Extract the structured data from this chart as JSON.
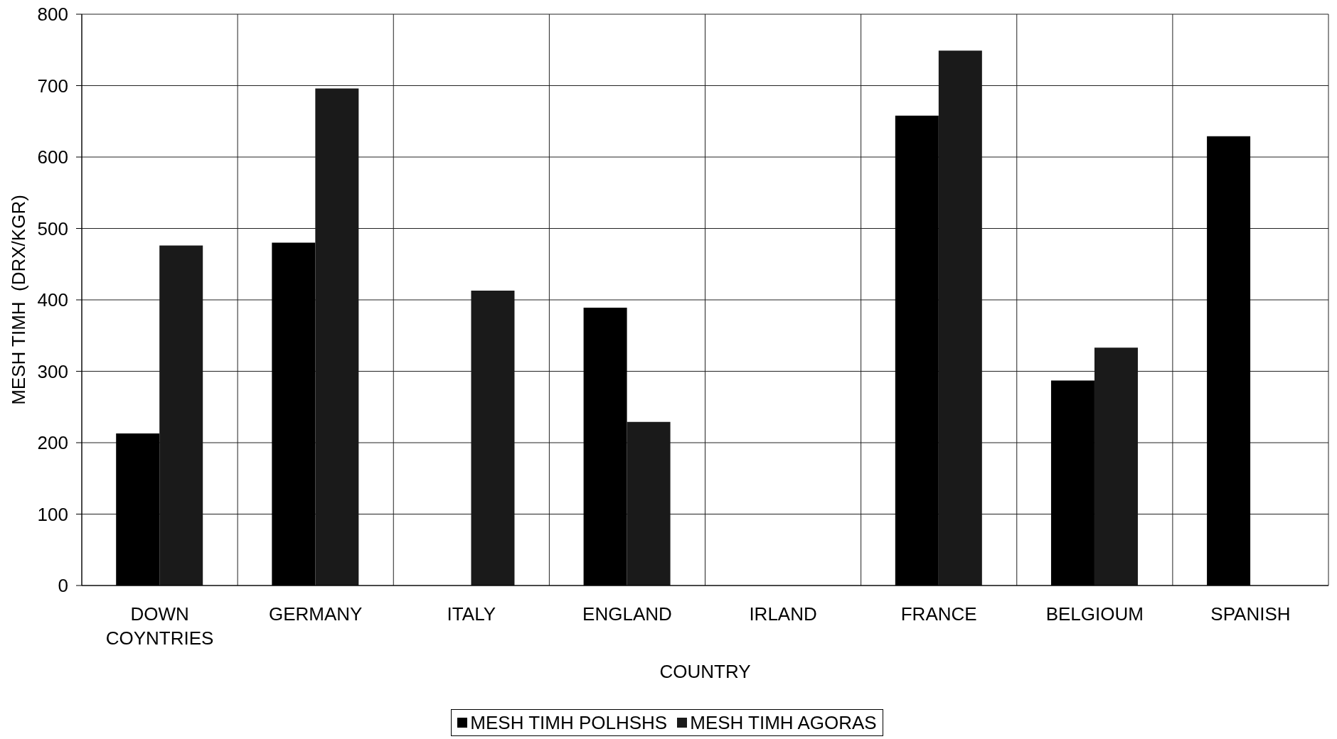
{
  "chart_data": {
    "type": "bar",
    "xlabel": "COUNTRY",
    "ylabel": "MESH TIMH  (DRX/KGR)",
    "categories": [
      "DOWN COYNTRIES",
      "GERMANY",
      "ITALY",
      "ENGLAND",
      "IRLAND",
      "FRANCE",
      "BELGIOUM",
      "SPANISH"
    ],
    "series": [
      {
        "name": "MESH TIMH POLHSHS",
        "color": "#000000",
        "values": [
          213,
          480,
          null,
          389,
          null,
          658,
          287,
          629
        ]
      },
      {
        "name": "MESH TIMH AGORAS",
        "color": "#1a1a1a",
        "values": [
          476,
          696,
          413,
          229,
          null,
          749,
          333,
          null
        ]
      }
    ],
    "ylim": [
      0,
      800
    ],
    "yticks": [
      0,
      100,
      200,
      300,
      400,
      500,
      600,
      700,
      800
    ],
    "grid": true,
    "legend": "bottom"
  }
}
